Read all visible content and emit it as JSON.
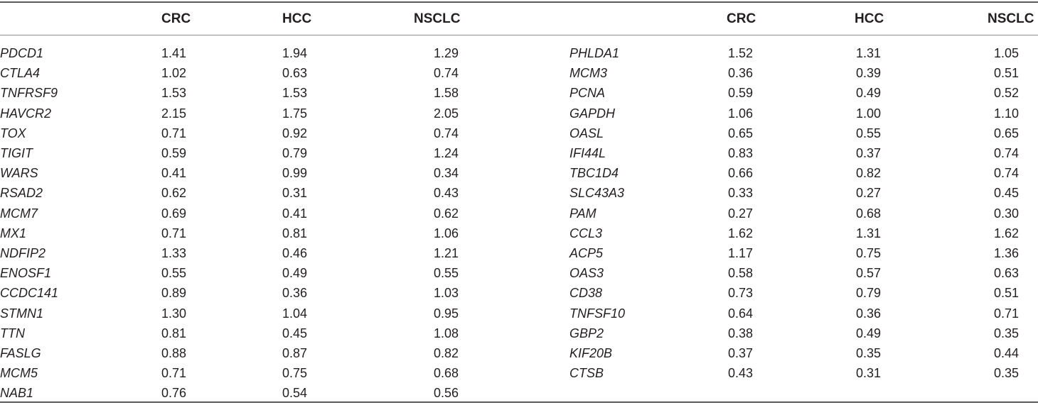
{
  "table": {
    "left_headers": [
      "CRC",
      "HCC",
      "NSCLC"
    ],
    "right_headers": [
      "CRC",
      "HCC",
      "NSCLC"
    ],
    "left_rows": [
      {
        "gene": "PDCD1",
        "crc": "1.41",
        "hcc": "1.94",
        "nsclc": "1.29"
      },
      {
        "gene": "CTLA4",
        "crc": "1.02",
        "hcc": "0.63",
        "nsclc": "0.74"
      },
      {
        "gene": "TNFRSF9",
        "crc": "1.53",
        "hcc": "1.53",
        "nsclc": "1.58"
      },
      {
        "gene": "HAVCR2",
        "crc": "2.15",
        "hcc": "1.75",
        "nsclc": "2.05"
      },
      {
        "gene": "TOX",
        "crc": "0.71",
        "hcc": "0.92",
        "nsclc": "0.74"
      },
      {
        "gene": "TIGIT",
        "crc": "0.59",
        "hcc": "0.79",
        "nsclc": "1.24"
      },
      {
        "gene": "WARS",
        "crc": "0.41",
        "hcc": "0.99",
        "nsclc": "0.34"
      },
      {
        "gene": "RSAD2",
        "crc": "0.62",
        "hcc": "0.31",
        "nsclc": "0.43"
      },
      {
        "gene": "MCM7",
        "crc": "0.69",
        "hcc": "0.41",
        "nsclc": "0.62"
      },
      {
        "gene": "MX1",
        "crc": "0.71",
        "hcc": "0.81",
        "nsclc": "1.06"
      },
      {
        "gene": "NDFIP2",
        "crc": "1.33",
        "hcc": "0.46",
        "nsclc": "1.21"
      },
      {
        "gene": "ENOSF1",
        "crc": "0.55",
        "hcc": "0.49",
        "nsclc": "0.55"
      },
      {
        "gene": "CCDC141",
        "crc": "0.89",
        "hcc": "0.36",
        "nsclc": "1.03"
      },
      {
        "gene": "STMN1",
        "crc": "1.30",
        "hcc": "1.04",
        "nsclc": "0.95"
      },
      {
        "gene": "TTN",
        "crc": "0.81",
        "hcc": "0.45",
        "nsclc": "1.08"
      },
      {
        "gene": "FASLG",
        "crc": "0.88",
        "hcc": "0.87",
        "nsclc": "0.82"
      },
      {
        "gene": "MCM5",
        "crc": "0.71",
        "hcc": "0.75",
        "nsclc": "0.68"
      },
      {
        "gene": "NAB1",
        "crc": "0.76",
        "hcc": "0.54",
        "nsclc": "0.56"
      }
    ],
    "right_rows": [
      {
        "gene": "PHLDA1",
        "crc": "1.52",
        "hcc": "1.31",
        "nsclc": "1.05"
      },
      {
        "gene": "MCM3",
        "crc": "0.36",
        "hcc": "0.39",
        "nsclc": "0.51"
      },
      {
        "gene": "PCNA",
        "crc": "0.59",
        "hcc": "0.49",
        "nsclc": "0.52"
      },
      {
        "gene": "GAPDH",
        "crc": "1.06",
        "hcc": "1.00",
        "nsclc": "1.10"
      },
      {
        "gene": "OASL",
        "crc": "0.65",
        "hcc": "0.55",
        "nsclc": "0.65"
      },
      {
        "gene": "IFI44L",
        "crc": "0.83",
        "hcc": "0.37",
        "nsclc": "0.74"
      },
      {
        "gene": "TBC1D4",
        "crc": "0.66",
        "hcc": "0.82",
        "nsclc": "0.74"
      },
      {
        "gene": "SLC43A3",
        "crc": "0.33",
        "hcc": "0.27",
        "nsclc": "0.45"
      },
      {
        "gene": "PAM",
        "crc": "0.27",
        "hcc": "0.68",
        "nsclc": "0.30"
      },
      {
        "gene": "CCL3",
        "crc": "1.62",
        "hcc": "1.31",
        "nsclc": "1.62"
      },
      {
        "gene": "ACP5",
        "crc": "1.17",
        "hcc": "0.75",
        "nsclc": "1.36"
      },
      {
        "gene": "OAS3",
        "crc": "0.58",
        "hcc": "0.57",
        "nsclc": "0.63"
      },
      {
        "gene": "CD38",
        "crc": "0.73",
        "hcc": "0.79",
        "nsclc": "0.51"
      },
      {
        "gene": "TNFSF10",
        "crc": "0.64",
        "hcc": "0.36",
        "nsclc": "0.71"
      },
      {
        "gene": "GBP2",
        "crc": "0.38",
        "hcc": "0.49",
        "nsclc": "0.35"
      },
      {
        "gene": "KIF20B",
        "crc": "0.37",
        "hcc": "0.35",
        "nsclc": "0.44"
      },
      {
        "gene": "CTSB",
        "crc": "0.43",
        "hcc": "0.31",
        "nsclc": "0.35"
      }
    ]
  }
}
